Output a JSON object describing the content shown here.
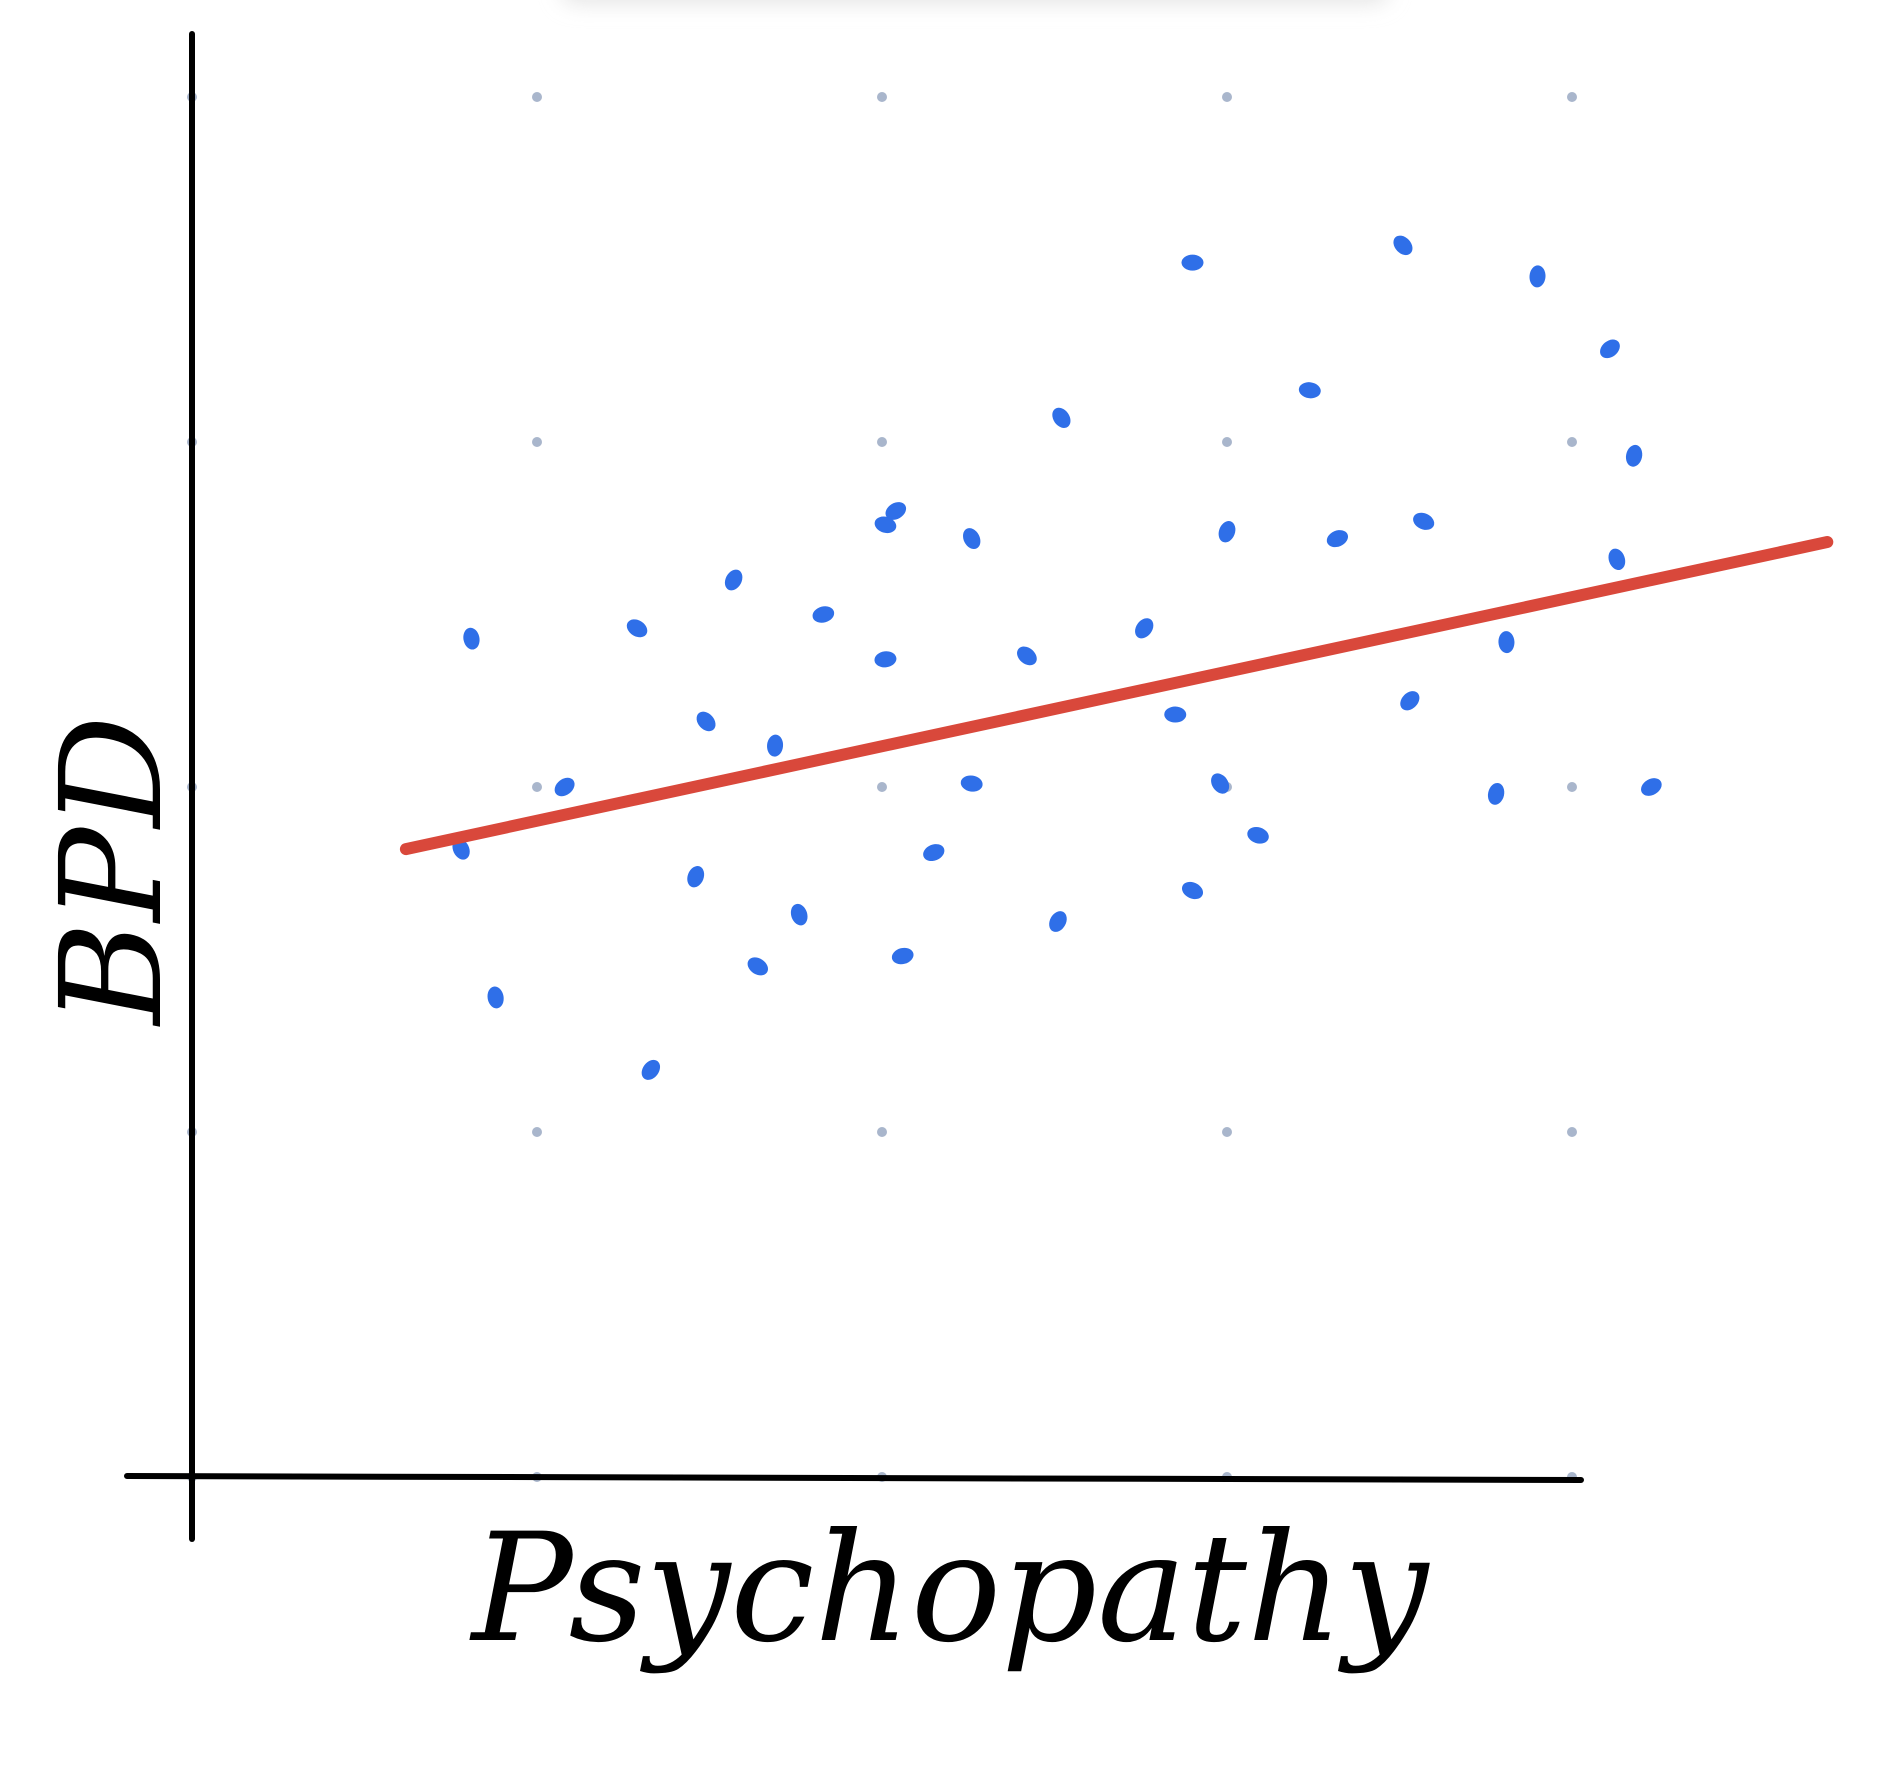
{
  "chart_data": {
    "type": "scatter",
    "x_label": "Psychopathy",
    "y_label": "BPD",
    "xlim": [
      0,
      4.8
    ],
    "ylim": [
      0,
      4.2
    ],
    "grid": "dots",
    "color": "#2f6fe8",
    "x": [
      2.9,
      3.51,
      3.9,
      4.11,
      3.24,
      2.52,
      4.18,
      2.04,
      2.01,
      2.26,
      3.0,
      3.32,
      3.57,
      4.13,
      1.57,
      1.83,
      1.29,
      0.81,
      2.76,
      2.01,
      2.42,
      3.81,
      3.53,
      2.85,
      1.49,
      1.69,
      1.08,
      2.26,
      2.98,
      3.78,
      4.23,
      3.09,
      0.78,
      1.46,
      2.15,
      2.9,
      1.76,
      2.51,
      2.06,
      1.64,
      0.88,
      1.33
    ],
    "values": [
      3.52,
      3.57,
      3.48,
      3.27,
      3.15,
      3.07,
      2.96,
      2.8,
      2.76,
      2.72,
      2.74,
      2.72,
      2.77,
      2.66,
      2.6,
      2.5,
      2.46,
      2.43,
      2.46,
      2.37,
      2.38,
      2.42,
      2.25,
      2.21,
      2.19,
      2.12,
      2.0,
      2.01,
      2.01,
      1.98,
      2.0,
      1.86,
      1.82,
      1.74,
      1.81,
      1.7,
      1.63,
      1.61,
      1.51,
      1.48,
      1.39,
      1.18
    ],
    "trend": {
      "color": "#d9483b",
      "x": [
        0.62,
        4.74
      ],
      "y": [
        1.82,
        2.71
      ]
    }
  }
}
